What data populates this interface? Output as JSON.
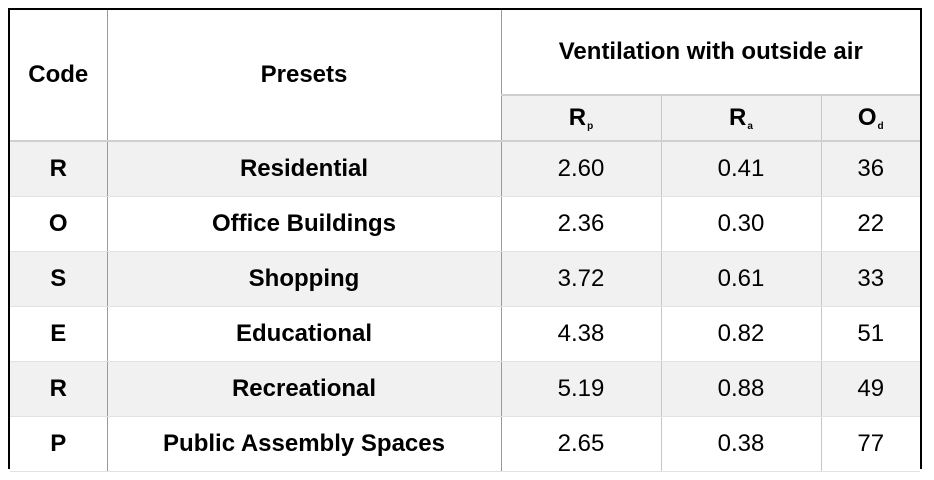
{
  "table": {
    "headers": {
      "code": "Code",
      "presets": "Presets",
      "group": "Ventilation with outside air",
      "sub": [
        {
          "letter": "R",
          "sub": "p"
        },
        {
          "letter": "R",
          "sub": "a"
        },
        {
          "letter": "O",
          "sub": "d"
        }
      ]
    },
    "rows": [
      {
        "code": "R",
        "preset": "Residential",
        "rp": "2.60",
        "ra": "0.41",
        "od": "36"
      },
      {
        "code": "O",
        "preset": "Office Buildings",
        "rp": "2.36",
        "ra": "0.30",
        "od": "22"
      },
      {
        "code": "S",
        "preset": "Shopping",
        "rp": "3.72",
        "ra": "0.61",
        "od": "33"
      },
      {
        "code": "E",
        "preset": "Educational",
        "rp": "4.38",
        "ra": "0.82",
        "od": "51"
      },
      {
        "code": "R",
        "preset": "Recreational",
        "rp": "5.19",
        "ra": "0.88",
        "od": "49"
      },
      {
        "code": "P",
        "preset": "Public Assembly Spaces",
        "rp": "2.65",
        "ra": "0.38",
        "od": "77"
      }
    ]
  },
  "colors": {
    "stripe": "#f1f1f1",
    "border": "#000000",
    "grid": "#c8c8c8"
  }
}
